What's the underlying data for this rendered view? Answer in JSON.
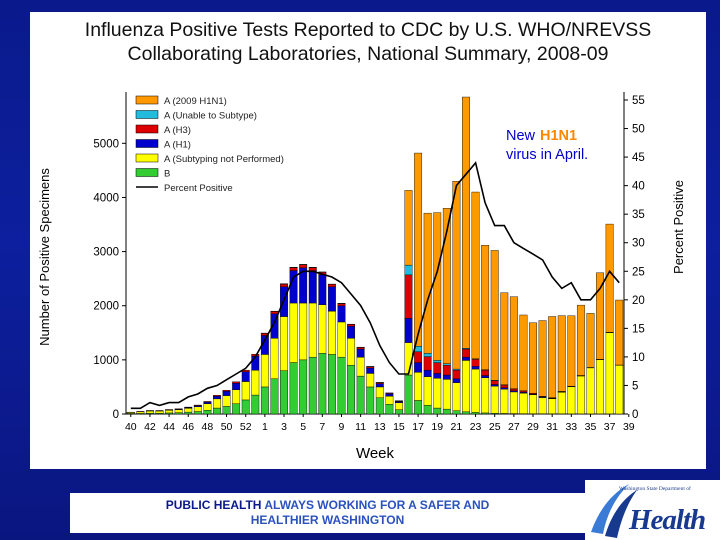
{
  "chart_data": {
    "type": "bar",
    "title": "Influenza Positive Tests Reported to CDC by U.S. WHO/NREVSS\nCollaborating Laboratories, National Summary, 2008-09",
    "xlabel": "Week",
    "ylabel": "Number of Positive Specimens",
    "y2label": "Percent Positive",
    "ylim": [
      0,
      5800
    ],
    "y2lim": [
      0,
      55
    ],
    "yticks": [
      "0",
      "1000",
      "2000",
      "3000",
      "4000",
      "5000"
    ],
    "y2ticks": [
      "0",
      "5",
      "10",
      "15",
      "20",
      "25",
      "30",
      "35",
      "40",
      "45",
      "50",
      "55"
    ],
    "x_tick_labels": [
      "40",
      "42",
      "44",
      "46",
      "48",
      "50",
      "52",
      "1",
      "3",
      "5",
      "7",
      "9",
      "11",
      "13",
      "15",
      "17",
      "19",
      "21",
      "23",
      "25",
      "27",
      "29",
      "31",
      "33",
      "35",
      "37",
      "39"
    ],
    "categories": [
      "40",
      "41",
      "42",
      "43",
      "44",
      "45",
      "46",
      "47",
      "48",
      "49",
      "50",
      "51",
      "52",
      "1",
      "2",
      "3",
      "4",
      "5",
      "6",
      "7",
      "8",
      "9",
      "10",
      "11",
      "12",
      "13",
      "14",
      "15",
      "16",
      "17",
      "18",
      "19",
      "20",
      "21",
      "22",
      "23",
      "24",
      "25",
      "26",
      "27",
      "28",
      "29",
      "30",
      "31",
      "32",
      "33",
      "34",
      "35",
      "36",
      "37",
      "38",
      "39"
    ],
    "stacked": true,
    "series": [
      {
        "name": "B",
        "color": "#33cc33",
        "values": [
          10,
          10,
          15,
          15,
          20,
          25,
          35,
          45,
          70,
          110,
          140,
          190,
          260,
          350,
          500,
          650,
          800,
          950,
          1000,
          1050,
          1120,
          1100,
          1050,
          900,
          700,
          500,
          300,
          180,
          80,
          720,
          250,
          160,
          110,
          90,
          60,
          40,
          30,
          20,
          15,
          10,
          8,
          6,
          5,
          4,
          3,
          3,
          2,
          2,
          2,
          2,
          2,
          1
        ]
      },
      {
        "name": "A (Subtyping not Performed)",
        "color": "#ffff00",
        "values": [
          20,
          30,
          40,
          40,
          50,
          55,
          70,
          90,
          120,
          170,
          200,
          260,
          340,
          460,
          600,
          750,
          1000,
          1100,
          1050,
          1000,
          900,
          800,
          650,
          500,
          350,
          250,
          200,
          150,
          130,
          600,
          520,
          530,
          550,
          550,
          520,
          950,
          800,
          650,
          500,
          450,
          400,
          380,
          350,
          300,
          280,
          400,
          500,
          700,
          850,
          1000,
          1500,
          900
        ]
      },
      {
        "name": "A (H1)",
        "color": "#0000cc",
        "values": [
          2,
          4,
          6,
          6,
          8,
          10,
          15,
          20,
          30,
          50,
          80,
          120,
          180,
          260,
          350,
          450,
          550,
          600,
          650,
          600,
          550,
          450,
          300,
          220,
          150,
          100,
          60,
          40,
          20,
          450,
          180,
          120,
          90,
          80,
          70,
          60,
          50,
          40,
          30,
          25,
          20,
          15,
          12,
          10,
          8,
          6,
          5,
          4,
          3,
          3,
          3,
          2
        ]
      },
      {
        "name": "A (H3)",
        "color": "#dd0000",
        "values": [
          2,
          3,
          4,
          4,
          5,
          6,
          8,
          10,
          12,
          15,
          20,
          25,
          30,
          35,
          40,
          45,
          50,
          55,
          60,
          55,
          50,
          45,
          40,
          35,
          30,
          25,
          20,
          15,
          10,
          800,
          200,
          250,
          200,
          180,
          160,
          150,
          130,
          100,
          70,
          50,
          35,
          25,
          15,
          10,
          8,
          6,
          5,
          3,
          2,
          2,
          1,
          1
        ]
      },
      {
        "name": "A (Unable to Subtype)",
        "color": "#22bbdd",
        "values": [
          0,
          0,
          0,
          0,
          0,
          0,
          0,
          0,
          0,
          0,
          0,
          0,
          0,
          0,
          5,
          5,
          5,
          5,
          5,
          5,
          5,
          5,
          5,
          5,
          5,
          5,
          5,
          5,
          5,
          180,
          100,
          60,
          40,
          30,
          20,
          15,
          10,
          8,
          6,
          5,
          4,
          3,
          3,
          2,
          2,
          2,
          2,
          2,
          2,
          2,
          2,
          1
        ]
      },
      {
        "name": "A (2009 H1N1)",
        "color": "#ff9900",
        "values": [
          0,
          0,
          0,
          0,
          0,
          0,
          0,
          0,
          0,
          0,
          0,
          0,
          0,
          0,
          0,
          0,
          0,
          0,
          0,
          0,
          0,
          0,
          0,
          0,
          0,
          0,
          0,
          0,
          0,
          1380,
          3570,
          2590,
          2730,
          2870,
          3470,
          4640,
          3080,
          2300,
          2400,
          1700,
          1700,
          1400,
          1300,
          1400,
          1500,
          1400,
          1300,
          1300,
          1000,
          1600,
          2000,
          1200
        ]
      }
    ],
    "line": {
      "name": "Percent Positive",
      "color": "#000000",
      "axis": "right",
      "values": [
        1,
        1,
        2,
        1.5,
        2,
        2,
        3,
        3.5,
        4.5,
        5,
        6,
        7,
        8,
        10,
        13,
        16,
        20,
        24,
        25,
        25,
        24.5,
        24,
        23,
        21,
        19,
        16,
        12,
        9,
        7,
        7,
        14,
        20,
        25,
        32,
        40,
        42,
        44,
        37,
        33,
        33,
        30,
        29,
        28,
        27,
        24,
        22,
        23,
        20,
        20,
        22,
        25,
        23
      ]
    },
    "annotation": {
      "text_1": "New",
      "text_2": "H1N1",
      "text_3": "virus in April."
    },
    "legend": "top-left"
  },
  "footer": {
    "part_1": "PUBLIC HEALTH",
    "part_2": "ALWAYS WORKING FOR A SAFER AND",
    "part_3": "HEALTHIER WASHINGTON"
  },
  "logo": {
    "subtitle": "Washington State Department of",
    "word": "Health"
  }
}
